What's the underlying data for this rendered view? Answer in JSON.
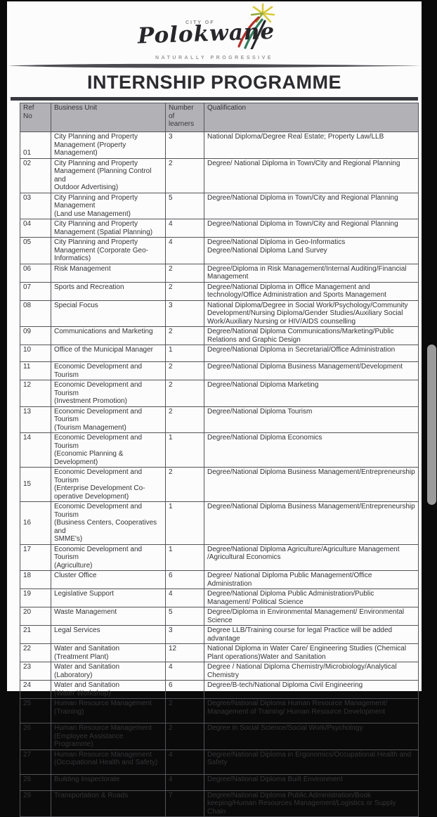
{
  "page": {
    "logo": {
      "city_of": "CITY OF",
      "name": "Polokwane",
      "tagline": "NATURALLY PROGRESSIVE"
    },
    "title": "INTERNSHIP PROGRAMME"
  },
  "colors": {
    "header_bg": "#b2b2b6",
    "table_border": "#55555a",
    "title_text": "#2c2c30",
    "logo_star_yellow": "#d9c93c",
    "logo_star_green": "#93a83b",
    "logo_swoosh_red": "#b23129",
    "logo_swoosh_green": "#2f7a5a",
    "logo_swoosh_dark": "#26262c"
  },
  "table": {
    "headers": {
      "ref": "Ref\nNo",
      "unit": "Business Unit",
      "learners": "Number\nof\nlearners",
      "qualification": "Qualification"
    },
    "rows": [
      {
        "ref": "01",
        "unit": "City Planning and Property\nManagement (Property\nManagement)",
        "learners": "3",
        "qualification": "National Diploma/Degree Real Estate; Property Law/LLB"
      },
      {
        "ref": "02",
        "unit": "City Planning and Property\nManagement (Planning Control and\nOutdoor Advertising)",
        "learners": "2",
        "qualification": "Degree/ National Diploma in Town/City and Regional Planning"
      },
      {
        "ref": "03",
        "unit": "City Planning and Property\nManagement\n(Land use Management)",
        "learners": "5",
        "qualification": "Degree/National Diploma in Town/City and Regional Planning"
      },
      {
        "ref": "04",
        "unit": "City Planning and Property\nManagement (Spatial Planning)",
        "learners": "4",
        "qualification": "Degree/National Diploma in Town/City and Regional Planning"
      },
      {
        "ref": "05",
        "unit": "City Planning and Property\nManagement (Corporate Geo-\nInformatics)",
        "learners": "4",
        "qualification": "Degree/National Diploma in Geo-Informatics\nDegree/National Diploma Land Survey"
      },
      {
        "ref": "06",
        "unit": "Risk Management",
        "learners": "2",
        "qualification": "Degree/Diploma in Risk Management/Internal Auditing/Financial\nManagement"
      },
      {
        "ref": "07",
        "unit": "Sports and Recreation",
        "learners": "2",
        "qualification": "Degree/National Diploma in Office Management and\ntechnology/Office Administration and Sports Management"
      },
      {
        "ref": "08",
        "unit": "Special Focus",
        "learners": "3",
        "qualification": "National Diploma/Degree in Social Work/Psychology/Community\nDevelopment/Nursing Diploma/Gender Studies/Auxiliary Social\nWork/Auxiliary Nursing or HIV/AIDS counselling"
      },
      {
        "ref": "09",
        "unit": "Communications and Marketing",
        "learners": "2",
        "qualification": "Degree/National Diploma Communications/Marketing/Public\nRelations and Graphic Design"
      },
      {
        "ref": "10",
        "unit": "Office of the Municipal Manager",
        "learners": "1",
        "qualification": "Degree/National Diploma in Secretarial/Office Administration"
      },
      {
        "ref": "11",
        "unit": "Economic Development and Tourism",
        "learners": "2",
        "qualification": "Degree/National Diploma Business Management/Development"
      },
      {
        "ref": "12",
        "unit": "Economic Development and Tourism\n(Investment Promotion)",
        "learners": "2",
        "qualification": "Degree/National Diploma Marketing"
      },
      {
        "ref": "13",
        "unit": "Economic Development and Tourism\n(Tourism Management)",
        "learners": "2",
        "qualification": "Degree/National Diploma Tourism"
      },
      {
        "ref": "14",
        "unit": "Economic Development and Tourism\n(Economic Planning & Development)",
        "learners": "1",
        "qualification": "Degree/National Diploma Economics"
      },
      {
        "ref": "15",
        "unit": "Economic Development and Tourism\n(Enterprise Development Co-\noperative Development)",
        "learners": "2",
        "qualification": "Degree/National Diploma Business Management/Entrepreneurship"
      },
      {
        "ref": "16",
        "unit": "Economic Development and Tourism\n(Business Centers, Cooperatives and\nSMME's)",
        "learners": "1",
        "qualification": "Degree/National Diploma Business Management/Entrepreneurship"
      },
      {
        "ref": "17",
        "unit": "Economic Development and Tourism\n(Agriculture)",
        "learners": "1",
        "qualification": "Degree/National Diploma Agriculture/Agriculture Management\n/Agricultural Economics"
      },
      {
        "ref": "18",
        "unit": "Cluster Office",
        "learners": "6",
        "qualification": "Degree/ National Diploma Public Management/Office Administration"
      },
      {
        "ref": "19",
        "unit": "Legislative Support",
        "learners": "4",
        "qualification": "Degree/National Diploma Public Administration/Public\nManagement/ Political Science"
      },
      {
        "ref": "20",
        "unit": "Waste Management",
        "learners": "5",
        "qualification": "Degree/Diploma in Environmental Management/ Environmental\nScience"
      },
      {
        "ref": "21",
        "unit": "Legal Services",
        "learners": "3",
        "qualification": "Degree LLB/Training course for legal Practice will be added\nadvantage"
      },
      {
        "ref": "22",
        "unit": "Water and Sanitation\n(Treatment Plant)",
        "learners": "12",
        "qualification": "National Diploma in Water Care/ Engineering Studies (Chemical\nPlant operations)Water and Sanitation"
      },
      {
        "ref": "23",
        "unit": "Water and Sanitation\n(Laboratory)",
        "learners": "4",
        "qualification": "Degree / National Diploma Chemistry/Microbiology/Analytical\nChemistry"
      },
      {
        "ref": "24",
        "unit": "Water and Sanitation\n(Water Workshop)",
        "learners": "6",
        "qualification": "Degree/B-tech/National Diploma Civil Engineering"
      },
      {
        "ref": "25",
        "unit": "Human Resource Management\n(Training)",
        "learners": "2",
        "qualification": "Degree/National Diploma Human Resource Management/\nManagement of Training/ Human Resource Development"
      },
      {
        "ref": "26",
        "unit": "Human Resource Management\n(Employee Assistance Programme)",
        "learners": "2",
        "qualification": "Degree in Social Science/Social Work/Psychology"
      },
      {
        "ref": "27",
        "unit": "Human Resource Management\n(Occupational Health and Safety)",
        "learners": "4",
        "qualification": "Degree/National Diploma in Ergonomics/Occupational Health and\nSafety"
      },
      {
        "ref": "28",
        "unit": "Building Inspectorate",
        "learners": "4",
        "qualification": "Degree/National Diploma Built Environment"
      },
      {
        "ref": "29",
        "unit": "Transportation & Roads",
        "learners": "7",
        "qualification": "Degree/National Diploma Public Administration/Book\nkeeping/Human Resources Management/Logistics or Supply Chain"
      }
    ]
  }
}
